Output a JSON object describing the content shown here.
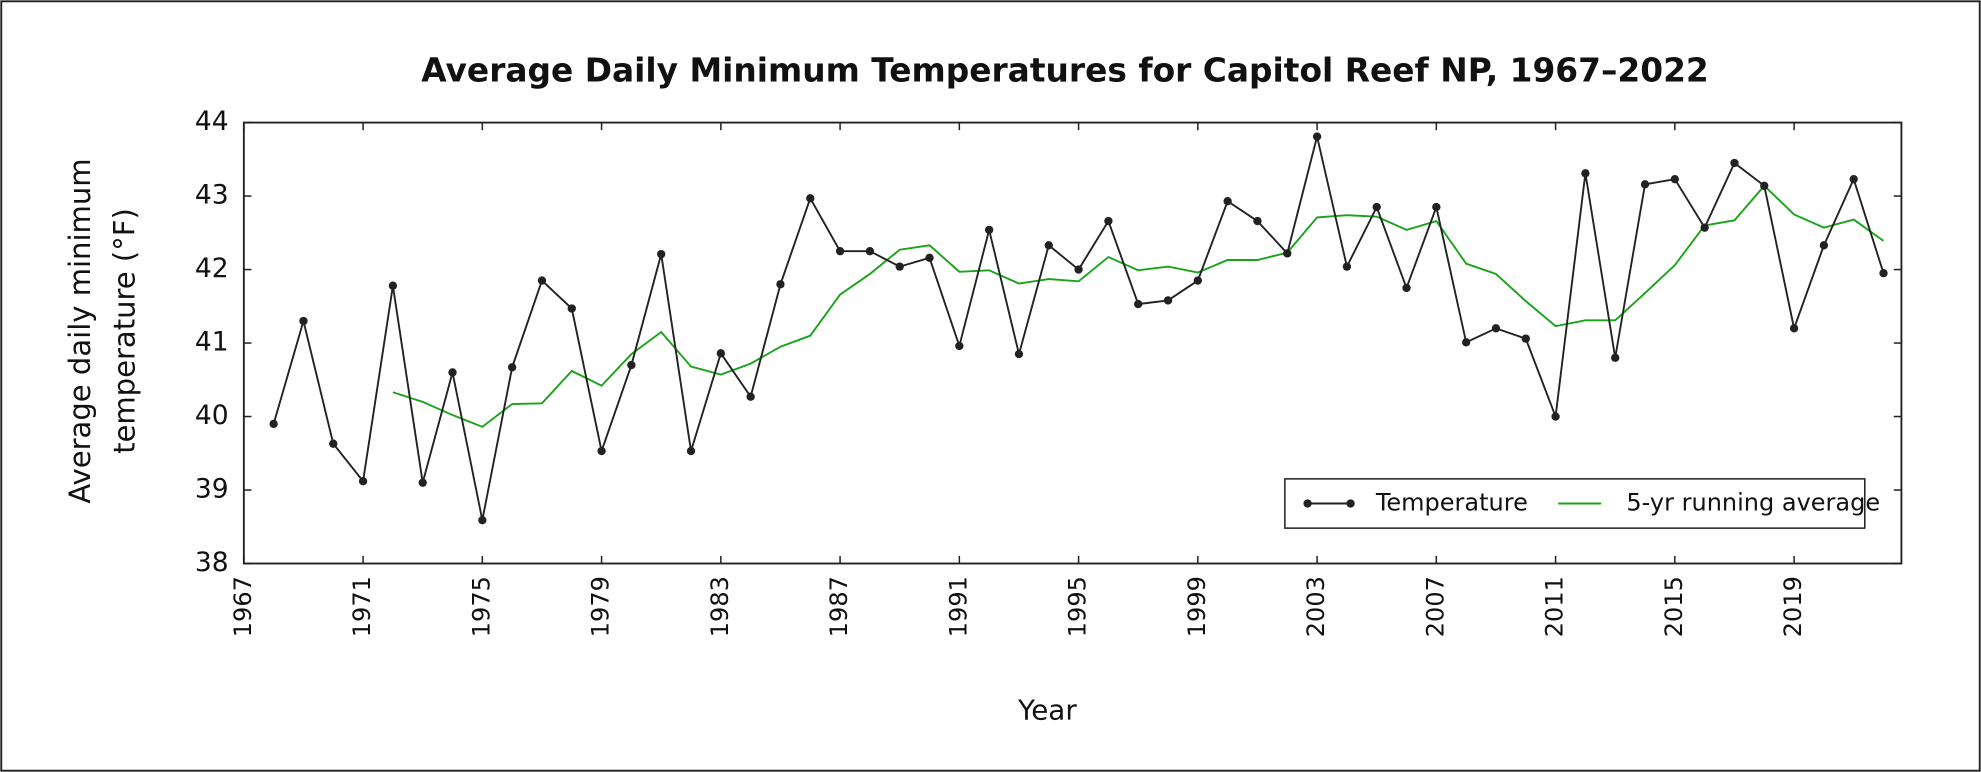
{
  "chart_data": {
    "type": "line",
    "title": "Average Daily Minimum Temperatures for Capitol Reef NP, 1967–2022",
    "xlabel": "Year",
    "ylabel": [
      "Average daily minimum",
      "temperature (°F)"
    ],
    "x": [
      1968,
      1969,
      1970,
      1971,
      1972,
      1973,
      1974,
      1975,
      1976,
      1977,
      1978,
      1979,
      1980,
      1981,
      1982,
      1983,
      1984,
      1985,
      1986,
      1987,
      1988,
      1989,
      1990,
      1991,
      1992,
      1993,
      1994,
      1995,
      1996,
      1997,
      1998,
      1999,
      2000,
      2001,
      2002,
      2003,
      2004,
      2005,
      2006,
      2007,
      2008,
      2009,
      2010,
      2011,
      2012,
      2013,
      2014,
      2015,
      2016,
      2017,
      2018,
      2019,
      2020,
      2021,
      2022
    ],
    "series": [
      {
        "name": "Temperature",
        "color": "#222222",
        "markers": true,
        "values": [
          39.9,
          41.3,
          39.63,
          39.12,
          41.78,
          39.1,
          40.6,
          38.59,
          40.67,
          41.85,
          41.47,
          39.53,
          40.7,
          42.21,
          39.53,
          40.86,
          40.27,
          41.8,
          42.97,
          42.25,
          42.25,
          42.04,
          42.16,
          40.96,
          42.54,
          40.85,
          42.33,
          42.0,
          42.66,
          41.53,
          41.58,
          41.85,
          42.93,
          42.66,
          42.22,
          43.81,
          42.04,
          42.85,
          41.75,
          42.85,
          41.01,
          41.2,
          41.06,
          40.0,
          43.31,
          40.8,
          43.16,
          43.23,
          42.57,
          43.45,
          43.14,
          41.2,
          42.33,
          43.23,
          41.95
        ]
      },
      {
        "name": "5-yr running average",
        "color": "#1aa31a",
        "markers": false,
        "values": [
          null,
          null,
          null,
          null,
          40.33,
          40.2,
          40.02,
          39.86,
          40.17,
          40.18,
          40.62,
          40.42,
          40.85,
          41.15,
          40.68,
          40.57,
          40.72,
          40.95,
          41.1,
          41.66,
          41.94,
          42.27,
          42.33,
          41.97,
          41.99,
          41.81,
          41.87,
          41.84,
          42.17,
          41.99,
          42.04,
          41.96,
          42.13,
          42.13,
          42.23,
          42.71,
          42.74,
          42.72,
          42.54,
          42.66,
          42.08,
          41.94,
          41.57,
          41.23,
          41.31,
          41.31,
          41.68,
          42.06,
          42.6,
          42.67,
          43.14,
          42.75,
          42.57,
          42.68,
          42.39
        ]
      }
    ],
    "xlim": [
      1967,
      2022.6
    ],
    "xticks": [
      1967,
      1971,
      1975,
      1979,
      1983,
      1987,
      1991,
      1995,
      1999,
      2003,
      2007,
      2011,
      2015,
      2019
    ],
    "ylim": [
      38,
      44
    ],
    "yticks": [
      38,
      39,
      40,
      41,
      42,
      43,
      44
    ],
    "legend": "lower right"
  }
}
